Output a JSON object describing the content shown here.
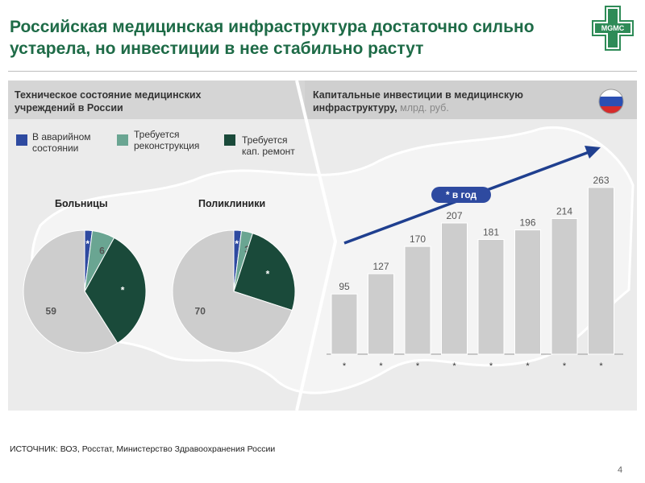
{
  "slide": {
    "title": "Российская медицинская инфраструктура достаточно сильно устарела, но инвестиции в нее стабильно растут",
    "logo_text": "MGMC",
    "left_header": "Техническое состояние медицинских учреждений в России",
    "right_header": "Капитальные инвестиции в медицинскую инфраструктуру,",
    "right_header_unit": "млрд. руб.",
    "source": "ИСТОЧНИК: ВОЗ, Росстат, Министерство Здравоохранения России",
    "page_number": "4"
  },
  "legend": [
    {
      "label": "В аварийном состоянии",
      "color": "#2e4aa0"
    },
    {
      "label": "Требуется реконструкция",
      "color": "#6aa592"
    },
    {
      "label": "Требуется кап. ремонт",
      "color": "#1a4a3a"
    }
  ],
  "colors": {
    "emergency": "#2e4aa0",
    "reconstruction": "#6aa592",
    "repair": "#1a4a3a",
    "ok": "#cdcdcd",
    "bar": "#cdcdcd",
    "arrow": "#1f3f8f",
    "badge": "#2e4aa0",
    "title": "#1e6b47"
  },
  "chart_data": [
    {
      "type": "pie",
      "title": "Больницы",
      "slices": [
        {
          "label": "В аварийном состоянии",
          "value": 2,
          "display": "*"
        },
        {
          "label": "Требуется реконструкция",
          "value": 6,
          "display": "6"
        },
        {
          "label": "Требуется кап. ремонт",
          "value": 33,
          "display": "*"
        },
        {
          "label": "",
          "value": 59,
          "display": "59"
        }
      ]
    },
    {
      "type": "pie",
      "title": "Поликлиники",
      "slices": [
        {
          "label": "В аварийном состоянии",
          "value": 2,
          "display": "*"
        },
        {
          "label": "Требуется реконструкция",
          "value": 3,
          "display": "3"
        },
        {
          "label": "Требуется кап. ремонт",
          "value": 25,
          "display": "*"
        },
        {
          "label": "",
          "value": 70,
          "display": "70"
        }
      ]
    },
    {
      "type": "bar",
      "title": "Капитальные инвестиции в медицинскую инфраструктуру, млрд. руб.",
      "categories": [
        "*",
        "*",
        "*",
        "*",
        "*",
        "*",
        "*",
        "*"
      ],
      "values": [
        95,
        127,
        170,
        207,
        181,
        196,
        214,
        263
      ],
      "ylim": [
        0,
        280
      ],
      "annotation": "* в год"
    }
  ]
}
